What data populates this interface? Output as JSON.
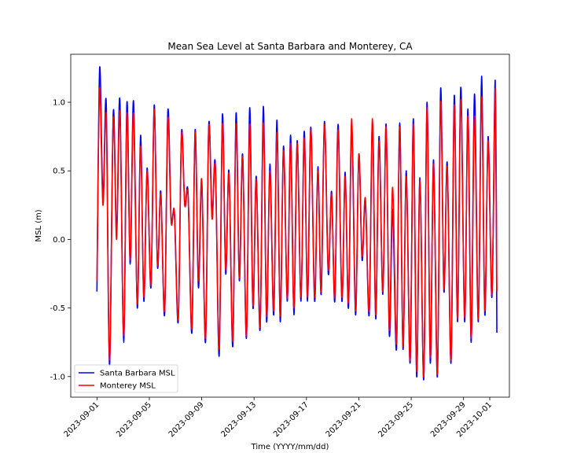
{
  "chart_data": {
    "type": "line",
    "title": "Mean Sea Level at Santa Barbara and Monterey, CA",
    "xlabel": "Time (YYYY/mm/dd)",
    "ylabel": "MSL (m)",
    "xlim": [
      "2023-08-30",
      "2023-10-02T12:00"
    ],
    "ylim": [
      -1.15,
      1.35
    ],
    "xticks": [
      "2023-09-01",
      "2023-09-05",
      "2023-09-09",
      "2023-09-13",
      "2023-09-17",
      "2023-09-21",
      "2023-09-25",
      "2023-09-29",
      "2023-10-01"
    ],
    "yticks": [
      "-1.0",
      "-0.5",
      "0.0",
      "0.5",
      "1.0"
    ],
    "yticks_values": [
      -1.0,
      -0.5,
      0.0,
      0.5,
      1.0
    ],
    "grid": false,
    "legend": "lower-left",
    "series": [
      {
        "name": "Santa Barbara MSL",
        "color": "#0000ff",
        "x": [
          "2023-09-01T00:00",
          "2023-09-01T05:00",
          "2023-09-01T11:00",
          "2023-09-01T17:00",
          "2023-09-01T23:00",
          "2023-09-02T06:00",
          "2023-09-02T12:00",
          "2023-09-02T18:00",
          "2023-09-03T01:00",
          "2023-09-03T07:00",
          "2023-09-03T13:00",
          "2023-09-03T19:00",
          "2023-09-04T02:00",
          "2023-09-04T08:00",
          "2023-09-04T14:00",
          "2023-09-04T20:00",
          "2023-09-05T03:00",
          "2023-09-05T09:00",
          "2023-09-05T15:00",
          "2023-09-05T21:00",
          "2023-09-06T04:00",
          "2023-09-06T10:00",
          "2023-09-06T16:00",
          "2023-09-06T22:00",
          "2023-09-07T05:00",
          "2023-09-07T11:00",
          "2023-09-07T17:00",
          "2023-09-07T23:00",
          "2023-09-08T06:00",
          "2023-09-08T12:00",
          "2023-09-08T18:00",
          "2023-09-09T00:00",
          "2023-09-09T07:00",
          "2023-09-09T13:00",
          "2023-09-09T19:00",
          "2023-09-10T01:00",
          "2023-09-10T08:00",
          "2023-09-10T14:00",
          "2023-09-10T20:00",
          "2023-09-11T02:00",
          "2023-09-11T09:00",
          "2023-09-11T15:00",
          "2023-09-11T21:00",
          "2023-09-12T03:00",
          "2023-09-12T10:00",
          "2023-09-12T16:00",
          "2023-09-12T22:00",
          "2023-09-13T04:00",
          "2023-09-13T11:00",
          "2023-09-13T17:00",
          "2023-09-13T23:00",
          "2023-09-14T05:00",
          "2023-09-14T12:00",
          "2023-09-14T18:00",
          "2023-09-15T00:00",
          "2023-09-15T06:00",
          "2023-09-15T13:00",
          "2023-09-15T19:00",
          "2023-09-16T01:00",
          "2023-09-16T07:00",
          "2023-09-16T14:00",
          "2023-09-16T20:00",
          "2023-09-17T02:00",
          "2023-09-17T08:00",
          "2023-09-17T15:00",
          "2023-09-17T21:00",
          "2023-09-18T03:00",
          "2023-09-18T09:00",
          "2023-09-18T16:00",
          "2023-09-18T22:00",
          "2023-09-19T04:00",
          "2023-09-19T10:00",
          "2023-09-19T17:00",
          "2023-09-19T23:00",
          "2023-09-20T05:00",
          "2023-09-20T11:00",
          "2023-09-20T18:00",
          "2023-09-21T00:00",
          "2023-09-21T06:00",
          "2023-09-21T12:00",
          "2023-09-21T19:00",
          "2023-09-22T01:00",
          "2023-09-22T07:00",
          "2023-09-22T13:00",
          "2023-09-22T20:00",
          "2023-09-23T02:00",
          "2023-09-23T08:00",
          "2023-09-23T14:00",
          "2023-09-23T21:00",
          "2023-09-24T03:00",
          "2023-09-24T09:00",
          "2023-09-24T15:00",
          "2023-09-24T22:00",
          "2023-09-25T04:00",
          "2023-09-25T10:00",
          "2023-09-25T16:00",
          "2023-09-25T23:00",
          "2023-09-26T05:00",
          "2023-09-26T11:00",
          "2023-09-26T17:00",
          "2023-09-27T00:00",
          "2023-09-27T06:00",
          "2023-09-27T12:00",
          "2023-09-27T18:00",
          "2023-09-28T01:00",
          "2023-09-28T07:00",
          "2023-09-28T13:00",
          "2023-09-28T19:00",
          "2023-09-29T02:00",
          "2023-09-29T08:00",
          "2023-09-29T14:00",
          "2023-09-29T20:00",
          "2023-09-30T03:00",
          "2023-09-30T09:00",
          "2023-09-30T15:00",
          "2023-09-30T21:00",
          "2023-10-01T04:00",
          "2023-10-01T10:00",
          "2023-10-01T13:00"
        ],
        "values": [
          -0.38,
          1.25,
          0.3,
          1.0,
          -0.92,
          0.93,
          0.05,
          1.02,
          -0.75,
          1.0,
          -0.18,
          1.01,
          -0.5,
          0.76,
          -0.45,
          0.52,
          -0.35,
          0.98,
          -0.2,
          0.35,
          -0.55,
          0.94,
          0.15,
          0.18,
          -0.6,
          0.78,
          0.25,
          0.34,
          -0.68,
          0.8,
          -0.35,
          0.42,
          -0.75,
          0.84,
          0.18,
          0.55,
          -0.85,
          0.91,
          -0.25,
          0.5,
          -0.78,
          0.92,
          -0.3,
          0.62,
          -0.72,
          0.96,
          -0.5,
          0.46,
          -0.66,
          0.97,
          -0.6,
          0.55,
          -0.55,
          0.87,
          -0.6,
          0.68,
          -0.45,
          0.76,
          -0.55,
          0.72,
          -0.45,
          0.79,
          -0.45,
          0.82,
          -0.45,
          0.53,
          -0.4,
          0.86,
          -0.25,
          0.35,
          -0.45,
          0.84,
          -0.45,
          0.49,
          -0.5,
          0.82,
          -0.55,
          0.62,
          -0.15,
          0.28,
          -0.55,
          0.85,
          -0.58,
          0.75,
          -0.4,
          0.84,
          -0.7,
          0.22,
          -0.8,
          0.85,
          -0.8,
          0.5,
          -0.9,
          0.88,
          -1.0,
          0.45,
          -1.02,
          1.0,
          -0.9,
          0.58,
          -1.0,
          1.1,
          -0.38,
          0.56,
          -0.9,
          1.05,
          -0.6,
          1.11,
          -0.6,
          0.95,
          -0.75,
          1.06,
          -0.6,
          1.19,
          -0.55,
          0.75,
          -0.42,
          1.16,
          -0.68
        ]
      },
      {
        "name": "Monterey MSL",
        "color": "#ff0000",
        "x": [
          "2023-09-01T00:00",
          "2023-09-01T05:00",
          "2023-09-01T11:00",
          "2023-09-01T17:00",
          "2023-09-01T23:00",
          "2023-09-02T06:00",
          "2023-09-02T12:00",
          "2023-09-02T18:00",
          "2023-09-03T01:00",
          "2023-09-03T07:00",
          "2023-09-03T13:00",
          "2023-09-03T19:00",
          "2023-09-04T02:00",
          "2023-09-04T08:00",
          "2023-09-04T14:00",
          "2023-09-04T20:00",
          "2023-09-05T03:00",
          "2023-09-05T09:00",
          "2023-09-05T15:00",
          "2023-09-05T21:00",
          "2023-09-06T04:00",
          "2023-09-06T10:00",
          "2023-09-06T16:00",
          "2023-09-06T22:00",
          "2023-09-07T05:00",
          "2023-09-07T11:00",
          "2023-09-07T17:00",
          "2023-09-07T23:00",
          "2023-09-08T06:00",
          "2023-09-08T12:00",
          "2023-09-08T18:00",
          "2023-09-09T00:00",
          "2023-09-09T07:00",
          "2023-09-09T13:00",
          "2023-09-09T19:00",
          "2023-09-10T01:00",
          "2023-09-10T08:00",
          "2023-09-10T14:00",
          "2023-09-10T20:00",
          "2023-09-11T02:00",
          "2023-09-11T09:00",
          "2023-09-11T15:00",
          "2023-09-11T21:00",
          "2023-09-12T03:00",
          "2023-09-12T10:00",
          "2023-09-12T16:00",
          "2023-09-12T22:00",
          "2023-09-13T04:00",
          "2023-09-13T11:00",
          "2023-09-13T17:00",
          "2023-09-13T23:00",
          "2023-09-14T05:00",
          "2023-09-14T12:00",
          "2023-09-14T18:00",
          "2023-09-15T00:00",
          "2023-09-15T06:00",
          "2023-09-15T13:00",
          "2023-09-15T19:00",
          "2023-09-16T01:00",
          "2023-09-16T07:00",
          "2023-09-16T14:00",
          "2023-09-16T20:00",
          "2023-09-17T02:00",
          "2023-09-17T08:00",
          "2023-09-17T15:00",
          "2023-09-17T21:00",
          "2023-09-18T03:00",
          "2023-09-18T09:00",
          "2023-09-18T16:00",
          "2023-09-18T22:00",
          "2023-09-19T04:00",
          "2023-09-19T10:00",
          "2023-09-19T17:00",
          "2023-09-19T23:00",
          "2023-09-20T05:00",
          "2023-09-20T11:00",
          "2023-09-20T18:00",
          "2023-09-21T00:00",
          "2023-09-21T06:00",
          "2023-09-21T12:00",
          "2023-09-21T19:00",
          "2023-09-22T01:00",
          "2023-09-22T07:00",
          "2023-09-22T13:00",
          "2023-09-22T20:00",
          "2023-09-23T02:00",
          "2023-09-23T08:00",
          "2023-09-23T14:00",
          "2023-09-23T21:00",
          "2023-09-24T03:00",
          "2023-09-24T09:00",
          "2023-09-24T15:00",
          "2023-09-24T22:00",
          "2023-09-25T04:00",
          "2023-09-25T10:00",
          "2023-09-25T16:00",
          "2023-09-25T23:00",
          "2023-09-26T05:00",
          "2023-09-26T11:00",
          "2023-09-26T17:00",
          "2023-09-27T00:00",
          "2023-09-27T06:00",
          "2023-09-27T12:00",
          "2023-09-27T18:00",
          "2023-09-28T01:00",
          "2023-09-28T07:00",
          "2023-09-28T13:00",
          "2023-09-28T19:00",
          "2023-09-29T02:00",
          "2023-09-29T08:00",
          "2023-09-29T14:00",
          "2023-09-29T20:00",
          "2023-09-30T03:00",
          "2023-09-30T09:00",
          "2023-09-30T15:00",
          "2023-09-30T21:00",
          "2023-10-01T04:00",
          "2023-10-01T10:00",
          "2023-10-01T13:00"
        ],
        "values": [
          -0.3,
          1.1,
          0.25,
          0.9,
          -0.88,
          0.88,
          0.0,
          0.93,
          -0.7,
          0.92,
          -0.15,
          0.92,
          -0.47,
          0.68,
          -0.42,
          0.5,
          -0.33,
          0.95,
          -0.18,
          0.33,
          -0.52,
          0.88,
          0.13,
          0.2,
          -0.58,
          0.76,
          0.25,
          0.32,
          -0.65,
          0.78,
          -0.3,
          0.44,
          -0.72,
          0.82,
          0.15,
          0.53,
          -0.8,
          0.84,
          -0.22,
          0.48,
          -0.74,
          0.84,
          -0.28,
          0.6,
          -0.7,
          0.84,
          -0.48,
          0.44,
          -0.64,
          0.85,
          -0.56,
          0.5,
          -0.52,
          0.78,
          -0.56,
          0.65,
          -0.43,
          0.7,
          -0.5,
          0.7,
          -0.42,
          0.74,
          -0.42,
          0.8,
          -0.42,
          0.5,
          -0.38,
          0.84,
          -0.22,
          0.33,
          -0.42,
          0.8,
          -0.42,
          0.46,
          -0.46,
          0.88,
          -0.52,
          0.62,
          -0.12,
          0.3,
          -0.52,
          0.88,
          -0.55,
          0.72,
          -0.38,
          0.82,
          -0.66,
          0.38,
          -0.76,
          0.82,
          -0.78,
          0.46,
          -0.88,
          0.84,
          -0.96,
          0.43,
          -1.0,
          0.96,
          -0.86,
          0.55,
          -0.98,
          1.0,
          -0.36,
          0.53,
          -0.88,
          0.98,
          -0.58,
          1.02,
          -0.57,
          0.9,
          -0.72,
          0.9,
          -0.58,
          1.04,
          -0.52,
          0.72,
          -0.4,
          1.1,
          -0.38
        ]
      }
    ]
  }
}
